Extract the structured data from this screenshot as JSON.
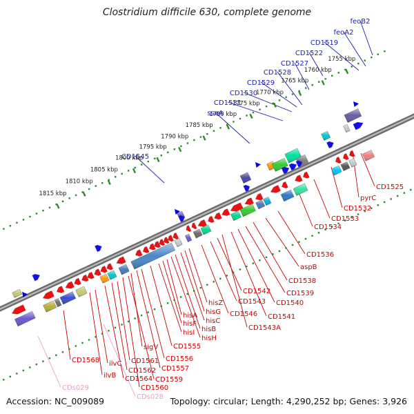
{
  "title": "Clostridium difficile 630, complete genome",
  "footer": {
    "accession": "Accession: NC_009089",
    "summary": "Topology: circular; Length: 4,290,252 bp; Genes: 3,926"
  },
  "colors": {
    "backbone": "#8c8c8c",
    "tick_dots": "#2a8a2a",
    "gene_forward_label": "#1c1cb0",
    "gene_reverse_label": "#cc0000",
    "cds_label": "#e8a0c8",
    "forward_arrow": "#0000ee",
    "reverse_arrow": "#ee0000"
  },
  "ticks": [
    {
      "label": "1755 kbp"
    },
    {
      "label": "1760 kbp"
    },
    {
      "label": "1765 kbp"
    },
    {
      "label": "1770 kbp"
    },
    {
      "label": "1775 kbp"
    },
    {
      "label": "1780 kbp"
    },
    {
      "label": "1785 kbp"
    },
    {
      "label": "1790 kbp"
    },
    {
      "label": "1795 kbp"
    },
    {
      "label": "1800 kbp"
    },
    {
      "label": "1805 kbp"
    },
    {
      "label": "1810 kbp"
    },
    {
      "label": "1815 kbp"
    }
  ],
  "labels_forward": [
    {
      "text": "feoB2"
    },
    {
      "text": "feoA2"
    },
    {
      "text": "CD1519"
    },
    {
      "text": "CD1522"
    },
    {
      "text": "CD1527"
    },
    {
      "text": "CD1528"
    },
    {
      "text": "CD1529"
    },
    {
      "text": "CD1530"
    },
    {
      "text": "CD1531"
    },
    {
      "text": "sseA"
    },
    {
      "text": "CD1545"
    }
  ],
  "labels_reverse": [
    {
      "text": "CD1525"
    },
    {
      "text": "pyrC"
    },
    {
      "text": "CD1532"
    },
    {
      "text": "CD1533"
    },
    {
      "text": "CD1534"
    },
    {
      "text": "CD1536"
    },
    {
      "text": "aspB"
    },
    {
      "text": "CD1538"
    },
    {
      "text": "CD1539"
    },
    {
      "text": "CD1540"
    },
    {
      "text": "CD1541"
    },
    {
      "text": "CD1542"
    },
    {
      "text": "CD1543"
    },
    {
      "text": "CD1543A"
    },
    {
      "text": "CD1546"
    },
    {
      "text": "hisZ"
    },
    {
      "text": "hisG"
    },
    {
      "text": "hisC"
    },
    {
      "text": "hisB"
    },
    {
      "text": "hisH"
    },
    {
      "text": "hisA"
    },
    {
      "text": "hisF"
    },
    {
      "text": "hisI"
    },
    {
      "text": "CD1555"
    },
    {
      "text": "CD1556"
    },
    {
      "text": "CD1557"
    },
    {
      "text": "sigV"
    },
    {
      "text": "CD1559"
    },
    {
      "text": "CD1560"
    },
    {
      "text": "CD1561"
    },
    {
      "text": "CD1562"
    },
    {
      "text": "CD1564"
    },
    {
      "text": "ilvC"
    },
    {
      "text": "ilvB"
    },
    {
      "text": "CD1568"
    }
  ],
  "labels_cds": [
    {
      "text": "CDs028"
    },
    {
      "text": "CDs029"
    }
  ]
}
